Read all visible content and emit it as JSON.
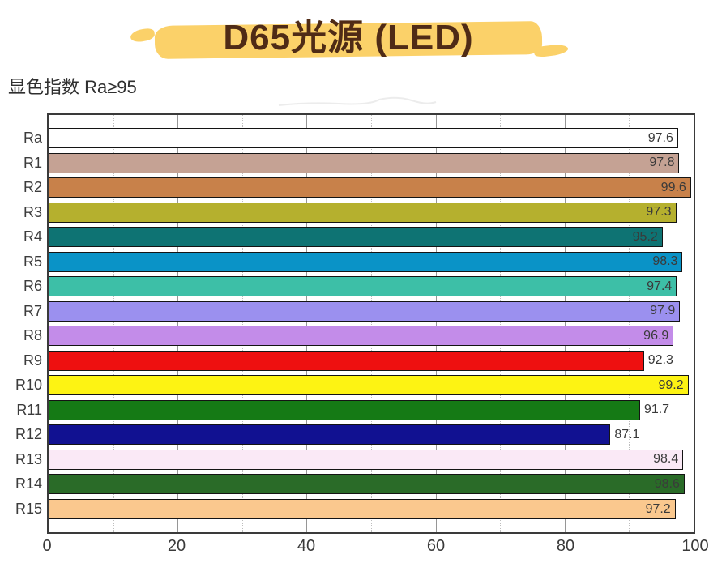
{
  "title": "D65光源 (LED)",
  "subtitle": "显色指数 Ra≥95",
  "colors": {
    "title_text": "#4f2b16",
    "title_highlight": "#fbd169",
    "axis_text": "#3a3a3a",
    "value_text": "#3a3a3a",
    "bar_border": "#141414",
    "plot_frame": "#3a3a3a",
    "major_grid": "#969696",
    "minor_grid": "#bdbdbd"
  },
  "chart_data": {
    "type": "bar",
    "orientation": "horizontal",
    "title": "D65光源 (LED)",
    "subtitle": "显色指数 Ra≥95",
    "categories": [
      "Ra",
      "R1",
      "R2",
      "R3",
      "R4",
      "R5",
      "R6",
      "R7",
      "R8",
      "R9",
      "R10",
      "R11",
      "R12",
      "R13",
      "R14",
      "R15"
    ],
    "values": [
      97.6,
      97.8,
      99.6,
      97.3,
      95.2,
      98.3,
      97.4,
      97.9,
      96.9,
      92.3,
      99.2,
      91.7,
      87.1,
      98.4,
      98.6,
      97.2
    ],
    "bar_colors": [
      "#ffffff",
      "#c5a294",
      "#c8814a",
      "#b5b02e",
      "#0e7373",
      "#0a93c7",
      "#3dbfa7",
      "#9b90ef",
      "#c38ce9",
      "#ee1010",
      "#fdf313",
      "#157a15",
      "#111191",
      "#fae9f6",
      "#2a6b28",
      "#fac88e"
    ],
    "xlim": [
      0,
      100
    ],
    "x_ticks": [
      0,
      20,
      40,
      60,
      80,
      100
    ],
    "x_minor_ticks": [
      10,
      30,
      50,
      70,
      90
    ],
    "value_label_inside_min": 95,
    "grid": "on",
    "legend": "none"
  }
}
